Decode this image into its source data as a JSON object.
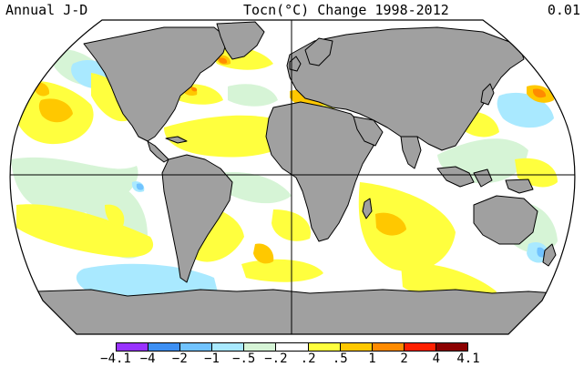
{
  "header": {
    "left": "Annual J-D",
    "center": "Tocn(°C) Change 1998-2012",
    "right": "0.01"
  },
  "legend": {
    "labels": [
      "-4.1",
      "-4",
      "-2",
      "-1",
      "-.5",
      "-.2",
      ".2",
      ".5",
      "1",
      "2",
      "4",
      "4.1"
    ],
    "colors": [
      "#9933ff",
      "#3d8ff3",
      "#71c3ff",
      "#a9e9ff",
      "#d6f4d6",
      "#ffffff",
      "#ffff3e",
      "#ffc800",
      "#ff8b00",
      "#ff2000",
      "#8b0000"
    ]
  },
  "map": {
    "projection": "Robinson",
    "land_color": "#a0a0a0",
    "ocean_color": "#ffffff",
    "values": {
      "north_pacific_west": 1,
      "north_pacific_east": 0.6,
      "north_atlantic_subpolar": 1.5,
      "mediterranean": 1,
      "kuroshio_extension": 1.5,
      "south_atlantic": 0.6,
      "indian_ocean": 0.7,
      "eastern_pacific": -0.3,
      "southern_ocean_pacific": -0.8,
      "alaska_coast": -0.8,
      "tasman_sea": -0.7
    }
  }
}
